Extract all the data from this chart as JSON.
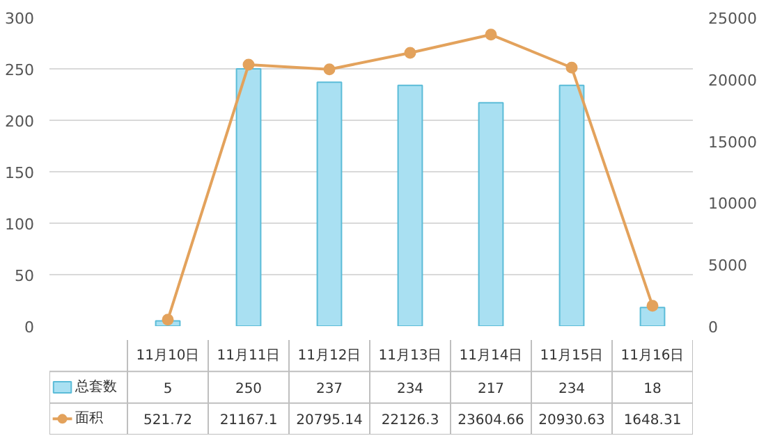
{
  "chart_data": {
    "type": "bar",
    "categories": [
      "11月10日",
      "11月11日",
      "11月12日",
      "11月13日",
      "11月14日",
      "11月15日",
      "11月16日"
    ],
    "series": [
      {
        "name": "总套数",
        "color": "#a9e0f2",
        "values": [
          5,
          250,
          237,
          234,
          217,
          234,
          18
        ]
      },
      {
        "name": "面积",
        "type": "line",
        "axis": "y2",
        "color": "#e3a25c",
        "values": [
          521.72,
          21167.1,
          20795.14,
          22126.3,
          23604.66,
          20930.63,
          1648.31
        ]
      }
    ],
    "ylim": [
      0,
      300
    ],
    "yticks": [
      0,
      50,
      100,
      150,
      200,
      250,
      300
    ],
    "y2lim": [
      0,
      25000
    ],
    "y2ticks": [
      0,
      5000,
      10000,
      15000,
      20000,
      25000
    ],
    "grid": "y",
    "legend": "bottom",
    "data_labels": true,
    "marker": "circle",
    "line_style": "solid"
  }
}
